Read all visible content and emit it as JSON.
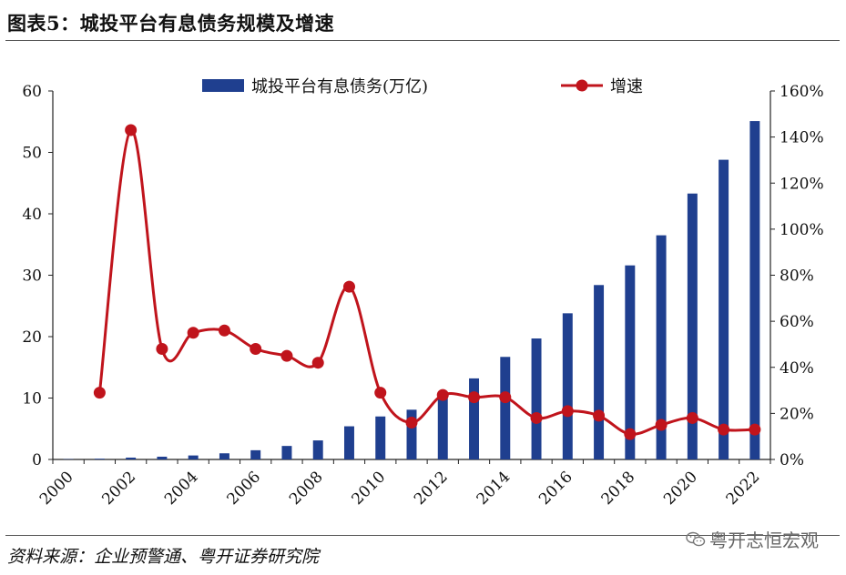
{
  "figure": {
    "title": "图表5：城投平台有息债务规模及增速",
    "source": "资料来源：企业预警通、粤开证券研究院",
    "watermark": "粤开志恒宏观",
    "watermark_icon": "wechat-icon"
  },
  "chart_data": {
    "type": "bar+line",
    "x": [
      2000,
      2001,
      2002,
      2003,
      2004,
      2005,
      2006,
      2007,
      2008,
      2009,
      2010,
      2011,
      2012,
      2013,
      2014,
      2015,
      2016,
      2017,
      2018,
      2019,
      2020,
      2021,
      2022
    ],
    "x_tick_labels": [
      "2000",
      "2002",
      "2004",
      "2006",
      "2008",
      "2010",
      "2012",
      "2014",
      "2016",
      "2018",
      "2020",
      "2022"
    ],
    "series": [
      {
        "name": "城投平台有息债务(万亿)",
        "type": "bar",
        "axis": "left",
        "color": "#1f3f8f",
        "values": [
          0.05,
          0.12,
          0.3,
          0.45,
          0.65,
          1.0,
          1.5,
          2.2,
          3.1,
          5.4,
          7.0,
          8.1,
          10.4,
          13.2,
          16.7,
          19.7,
          23.8,
          28.4,
          31.6,
          36.5,
          43.3,
          48.8,
          55.1
        ]
      },
      {
        "name": "增速",
        "type": "line",
        "axis": "right",
        "color": "#c0141c",
        "values": [
          null,
          0.29,
          1.43,
          0.48,
          0.55,
          0.56,
          0.48,
          0.45,
          0.42,
          0.75,
          0.29,
          0.16,
          0.28,
          0.27,
          0.27,
          0.18,
          0.21,
          0.19,
          0.11,
          0.15,
          0.18,
          0.13,
          0.13
        ]
      }
    ],
    "y_left": {
      "min": 0,
      "max": 60,
      "ticks": [
        0,
        10,
        20,
        30,
        40,
        50,
        60
      ]
    },
    "y_right": {
      "min": 0,
      "max": 1.6,
      "ticks": [
        0,
        0.2,
        0.4,
        0.6,
        0.8,
        1.0,
        1.2,
        1.4,
        1.6
      ],
      "tick_labels": [
        "0%",
        "20%",
        "40%",
        "60%",
        "80%",
        "100%",
        "120%",
        "140%",
        "160%"
      ]
    },
    "legend": {
      "placement": "top",
      "entries": [
        "城投平台有息债务(万亿)",
        "增速"
      ]
    },
    "grid": false
  }
}
